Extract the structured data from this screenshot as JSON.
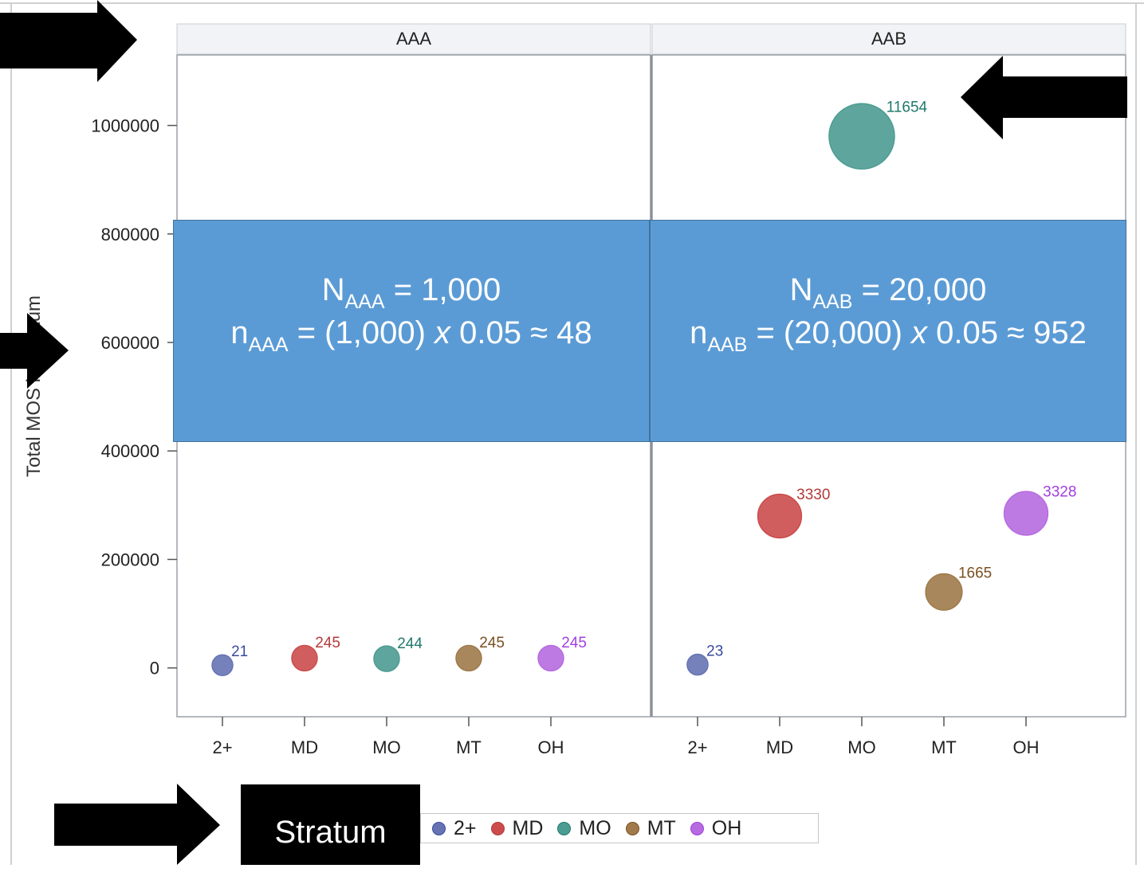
{
  "chart_data": {
    "type": "scatter",
    "subtype": "bubble",
    "ylabel": "Total MOS in Stratum",
    "ylim": [
      -90000,
      1130000
    ],
    "yticks": [
      0,
      200000,
      400000,
      600000,
      800000,
      1000000
    ],
    "ytick_labels": [
      "0",
      "200000",
      "400000",
      "600000",
      "800000",
      "1000000"
    ],
    "categories": [
      "2+",
      "MD",
      "MO",
      "MT",
      "OH"
    ],
    "legend_title": "Stratum",
    "legend_position": "bottom",
    "colors": {
      "2+": "#6673b3",
      "MD": "#cc4c4c",
      "MO": "#4c9c92",
      "MT": "#a07a4a",
      "OH": "#b76be0"
    },
    "label_colors": {
      "2+": "#3a4a9e",
      "MD": "#b33a3a",
      "MO": "#1f7a6e",
      "MT": "#7a5020",
      "OH": "#a040e0"
    },
    "panels": [
      {
        "title": "AAA",
        "points": [
          {
            "x": "2+",
            "y": 5000,
            "size": 21,
            "label": "21"
          },
          {
            "x": "MD",
            "y": 18000,
            "size": 245,
            "label": "245"
          },
          {
            "x": "MO",
            "y": 17000,
            "size": 244,
            "label": "244"
          },
          {
            "x": "MT",
            "y": 18000,
            "size": 245,
            "label": "245"
          },
          {
            "x": "OH",
            "y": 18000,
            "size": 245,
            "label": "245"
          }
        ]
      },
      {
        "title": "AAB",
        "points": [
          {
            "x": "2+",
            "y": 6000,
            "size": 23,
            "label": "23"
          },
          {
            "x": "MD",
            "y": 280000,
            "size": 3330,
            "label": "3330"
          },
          {
            "x": "MO",
            "y": 980000,
            "size": 11654,
            "label": "11654"
          },
          {
            "x": "MT",
            "y": 140000,
            "size": 1665,
            "label": "1665"
          },
          {
            "x": "OH",
            "y": 285000,
            "size": 3328,
            "label": "3328"
          }
        ]
      }
    ]
  },
  "annotations": [
    {
      "N_letter": "N",
      "N_sub": "AAA",
      "N_text": " = 1,000",
      "n_letter": "n",
      "n_sub": "AAA",
      "n_text_a": " = (1,000) ",
      "n_x": "x",
      "n_text_b": " 0.05 ≈ 48"
    },
    {
      "N_letter": "N",
      "N_sub": "AAB",
      "N_text": " = 20,000",
      "n_letter": "n",
      "n_sub": "AAB",
      "n_text_a": " = (20,000) ",
      "n_x": "x",
      "n_text_b": " 0.05 ≈ 952"
    }
  ],
  "legend": {
    "label": "Stratum",
    "items": [
      "2+",
      "MD",
      "MO",
      "MT",
      "OH"
    ]
  }
}
